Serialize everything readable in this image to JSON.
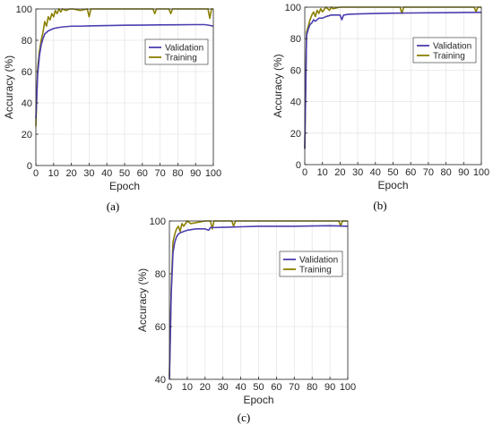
{
  "chart_data": [
    {
      "type": "line",
      "caption": "(a)",
      "xlabel": "Epoch",
      "ylabel": "Accuracy (%)",
      "xlim": [
        0,
        100
      ],
      "ylim": [
        0,
        100
      ],
      "xticks": [
        0,
        10,
        20,
        30,
        40,
        50,
        60,
        70,
        80,
        90,
        100
      ],
      "yticks": [
        0,
        20,
        40,
        60,
        80,
        100
      ],
      "grid": true,
      "legend_position": "upper-right",
      "series": [
        {
          "name": "Validation",
          "color": "#4b3fb0",
          "x": [
            0,
            1,
            2,
            3,
            4,
            5,
            6,
            7,
            8,
            10,
            12,
            15,
            20,
            25,
            30,
            40,
            50,
            60,
            70,
            80,
            90,
            95,
            98,
            100
          ],
          "y": [
            30,
            58,
            70,
            77,
            81,
            84,
            85,
            86,
            86.5,
            87.5,
            88,
            88.5,
            89,
            89,
            89.2,
            89.4,
            89.6,
            89.7,
            89.8,
            89.9,
            90,
            90,
            89.5,
            89
          ]
        },
        {
          "name": "Training",
          "color": "#8b8000",
          "x": [
            0,
            1,
            2,
            3,
            4,
            5,
            6,
            7,
            8,
            9,
            10,
            11,
            12,
            13,
            14,
            15,
            17,
            19,
            21,
            25,
            29,
            30,
            31,
            35,
            40,
            50,
            60,
            66,
            67,
            68,
            75,
            76,
            77,
            85,
            90,
            97,
            98,
            99,
            100
          ],
          "y": [
            25,
            62,
            73,
            80,
            85,
            92,
            89,
            95,
            93,
            97,
            95,
            99,
            97,
            100,
            98,
            100,
            99,
            100,
            100,
            99,
            100,
            95,
            100,
            100,
            100,
            100,
            100,
            100,
            97,
            100,
            100,
            97,
            100,
            100,
            100,
            100,
            94,
            100,
            100
          ]
        }
      ]
    },
    {
      "type": "line",
      "caption": "(b)",
      "xlabel": "Epoch",
      "ylabel": "Accuracy (%)",
      "xlim": [
        0,
        100
      ],
      "ylim": [
        0,
        100
      ],
      "xticks": [
        0,
        10,
        20,
        30,
        40,
        50,
        60,
        70,
        80,
        90,
        100
      ],
      "yticks": [
        0,
        20,
        40,
        60,
        80,
        100
      ],
      "grid": true,
      "legend_position": "upper-right",
      "series": [
        {
          "name": "Validation",
          "color": "#4b3fb0",
          "x": [
            0,
            1,
            2,
            3,
            4,
            5,
            6,
            8,
            10,
            12,
            15,
            20,
            21,
            22,
            25,
            30,
            40,
            50,
            60,
            70,
            80,
            90,
            100
          ],
          "y": [
            10,
            82,
            86,
            89,
            90,
            92,
            91,
            93,
            93,
            94,
            95,
            95,
            92,
            95,
            95.5,
            95.7,
            96,
            96.2,
            96.3,
            96.4,
            96.5,
            96.6,
            96.7
          ]
        },
        {
          "name": "Training",
          "color": "#8b8000",
          "x": [
            0,
            1,
            2,
            3,
            4,
            5,
            6,
            7,
            8,
            9,
            10,
            12,
            14,
            15,
            16,
            20,
            30,
            50,
            54,
            55,
            56,
            70,
            96,
            97,
            98,
            100
          ],
          "y": [
            10,
            84,
            88,
            92,
            95,
            97,
            94,
            98,
            96,
            99,
            97,
            100,
            98,
            100,
            99,
            100,
            100,
            100,
            100,
            96,
            100,
            100,
            100,
            97,
            100,
            100
          ]
        }
      ]
    },
    {
      "type": "line",
      "caption": "(c)",
      "xlabel": "Epoch",
      "ylabel": "Accuracy (%)",
      "xlim": [
        0,
        100
      ],
      "ylim": [
        40,
        100
      ],
      "xticks": [
        0,
        10,
        20,
        30,
        40,
        50,
        60,
        70,
        80,
        90,
        100
      ],
      "yticks": [
        40,
        60,
        80,
        100
      ],
      "grid": true,
      "legend_position": "upper-right",
      "series": [
        {
          "name": "Validation",
          "color": "#4b3fb0",
          "x": [
            0,
            1,
            2,
            3,
            4,
            5,
            6,
            8,
            10,
            15,
            20,
            22,
            23,
            25,
            30,
            40,
            50,
            60,
            70,
            80,
            90,
            100
          ],
          "y": [
            40,
            72,
            88,
            92,
            94,
            95,
            95.5,
            96,
            96.5,
            97,
            97,
            96.5,
            97.5,
            97.5,
            97.6,
            97.8,
            98,
            98,
            98,
            98.1,
            98.2,
            98
          ]
        },
        {
          "name": "Training",
          "color": "#8b8000",
          "x": [
            0,
            1,
            2,
            3,
            4,
            5,
            6,
            7,
            8,
            10,
            12,
            20,
            23,
            24,
            25,
            35,
            36,
            37,
            50,
            70,
            95,
            96,
            97,
            100
          ],
          "y": [
            41,
            74,
            92,
            95,
            97,
            98,
            96,
            99,
            98,
            100,
            99,
            100,
            100,
            97,
            100,
            100,
            98,
            100,
            100,
            100,
            100,
            98,
            100,
            100
          ]
        }
      ]
    }
  ]
}
